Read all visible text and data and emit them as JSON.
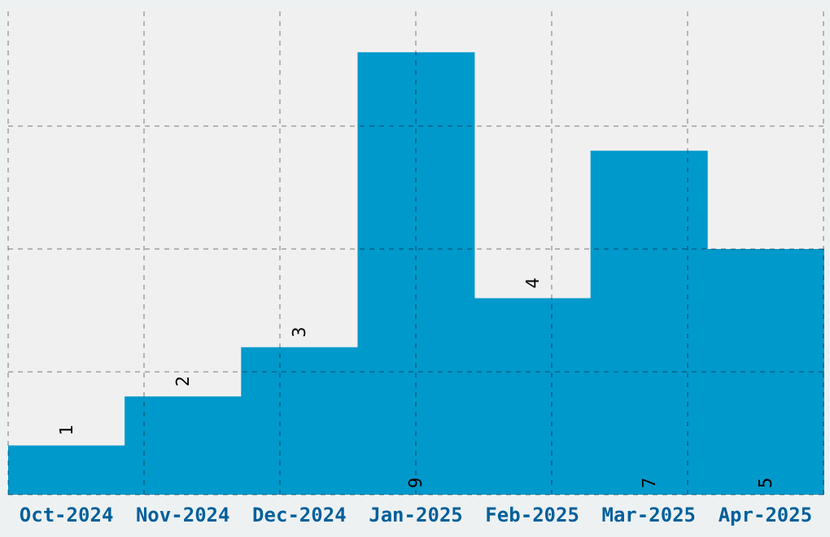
{
  "chart_data": {
    "type": "bar",
    "categories": [
      "Oct-2024",
      "Nov-2024",
      "Dec-2024",
      "Jan-2025",
      "Feb-2025",
      "Mar-2025",
      "Apr-2025"
    ],
    "values": [
      1,
      2,
      3,
      9,
      4,
      7,
      5
    ],
    "color": "#0099cc",
    "ylim": [
      0,
      9.9
    ],
    "yticks": [
      {
        "value": 0,
        "label": null
      },
      {
        "value": 2.5,
        "label": null
      },
      {
        "value": 5,
        "label": null
      },
      {
        "value": 7.5,
        "label": null
      }
    ],
    "grid": true,
    "tick_labels": "x",
    "data_labels": true
  }
}
